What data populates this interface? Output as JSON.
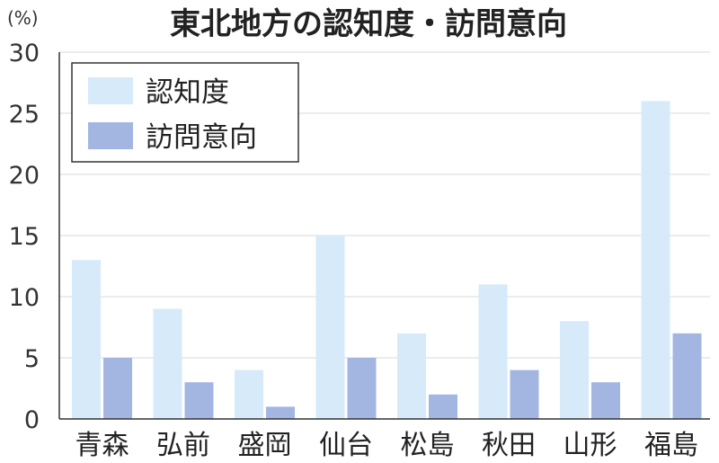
{
  "chart_data": {
    "type": "bar",
    "title": "東北地方の認知度・訪問意向",
    "unit_label": "(%)",
    "categories": [
      "青森",
      "弘前",
      "盛岡",
      "仙台",
      "松島",
      "秋田",
      "山形",
      "福島"
    ],
    "series": [
      {
        "name": "認知度",
        "values": [
          13,
          9,
          4,
          15,
          7,
          11,
          8,
          26
        ],
        "color": "#d6eafa"
      },
      {
        "name": "訪問意向",
        "values": [
          5,
          3,
          1,
          5,
          2,
          4,
          3,
          7
        ],
        "color": "#a3b6e2"
      }
    ],
    "ylim": [
      0,
      30
    ],
    "yticks": [
      0,
      5,
      10,
      15,
      20,
      25,
      30
    ],
    "grid": true,
    "legend_position": "top-left"
  }
}
